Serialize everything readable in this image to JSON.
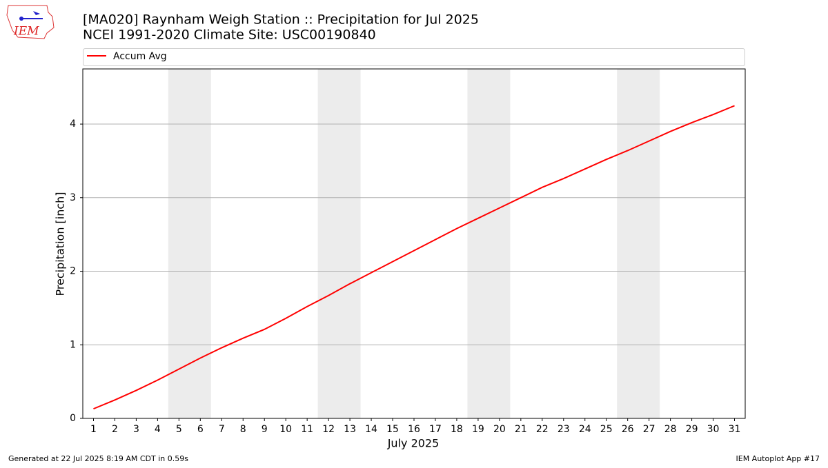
{
  "logo_text": "IEM",
  "footer_left": "Generated at 22 Jul 2025 8:19 AM CDT in 0.59s",
  "footer_right": "IEM Autoplot App #17",
  "chart_data": {
    "type": "line",
    "title": "[MA020] Raynham Weigh Station  :: Precipitation for Jul 2025",
    "subtitle": "NCEI 1991-2020 Climate Site: USC00190840",
    "x_label": "July 2025",
    "y_label": "Precipitation [inch]",
    "x": [
      1,
      2,
      3,
      4,
      5,
      6,
      7,
      8,
      9,
      10,
      11,
      12,
      13,
      14,
      15,
      16,
      17,
      18,
      19,
      20,
      21,
      22,
      23,
      24,
      25,
      26,
      27,
      28,
      29,
      30,
      31
    ],
    "series": [
      {
        "name": "Accum Avg",
        "color": "#ff0000",
        "values": [
          0.13,
          0.25,
          0.38,
          0.52,
          0.67,
          0.82,
          0.96,
          1.09,
          1.21,
          1.36,
          1.52,
          1.67,
          1.83,
          1.98,
          2.13,
          2.28,
          2.43,
          2.58,
          2.72,
          2.86,
          3.0,
          3.14,
          3.26,
          3.39,
          3.52,
          3.64,
          3.77,
          3.9,
          4.02,
          4.13,
          4.25
        ]
      }
    ],
    "shaded_x_ranges": [
      [
        4.5,
        6.5
      ],
      [
        11.5,
        13.5
      ],
      [
        18.5,
        20.5
      ],
      [
        25.5,
        27.5
      ]
    ],
    "shade_color": "#ececec",
    "xlim": [
      0.5,
      31.5
    ],
    "xticks": [
      1,
      2,
      3,
      4,
      5,
      6,
      7,
      8,
      9,
      10,
      11,
      12,
      13,
      14,
      15,
      16,
      17,
      18,
      19,
      20,
      21,
      22,
      23,
      24,
      25,
      26,
      27,
      28,
      29,
      30,
      31
    ],
    "ylim": [
      0,
      4.75
    ],
    "yticks": [
      0,
      1,
      2,
      3,
      4
    ],
    "grid": "y"
  }
}
